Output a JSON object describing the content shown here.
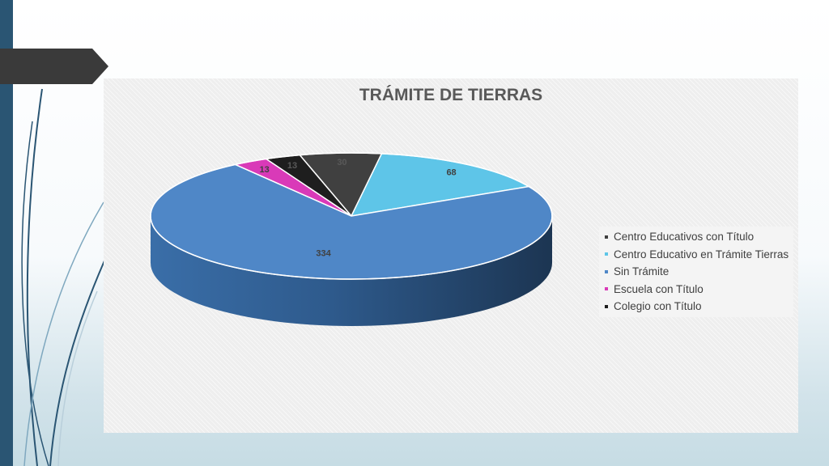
{
  "chart_data": {
    "type": "pie",
    "title": "TRÁMITE DE TIERRAS",
    "slices": [
      {
        "name": "Centro Educativos con Título",
        "value": 30,
        "label": "30",
        "color": "#404040",
        "label_color": "#595959"
      },
      {
        "name": "Centro Educativo en Trámite Tierras",
        "value": 68,
        "label": "68",
        "color": "#5ec5e8",
        "label_color": "#404040"
      },
      {
        "name": "Sin Trámite",
        "value": 334,
        "label": "334",
        "color": "#4f87c7",
        "label_color": "#404040"
      },
      {
        "name": "Escuela con Título",
        "value": 13,
        "label": "13",
        "color": "#d93ab8",
        "label_color": "#404040"
      },
      {
        "name": "Colegio con Título",
        "value": 13,
        "label": "13",
        "color": "#1e1e1e",
        "label_color": "#595959"
      }
    ],
    "legend_position": "right"
  }
}
